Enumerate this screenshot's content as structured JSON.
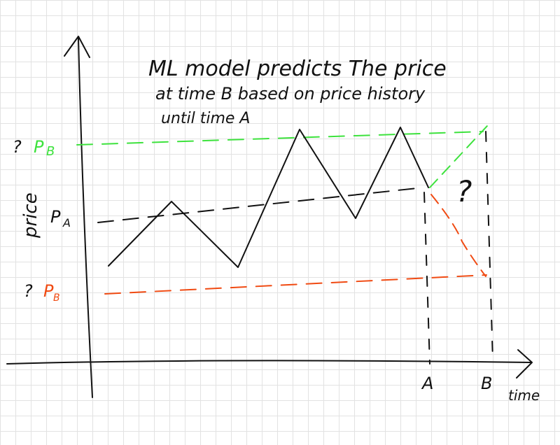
{
  "header": {
    "lines": [
      "ML model predicts The price",
      "at time B based on price history",
      "until time A"
    ]
  },
  "axes": {
    "y_label": "price",
    "x_label": "time"
  },
  "x_marks": [
    "A",
    "B"
  ],
  "price_labels": [
    {
      "question": "?",
      "letter": "P",
      "sub": "B"
    },
    {
      "letter": "P",
      "sub": "A"
    },
    {
      "question": "?",
      "letter": "P",
      "sub": "B"
    }
  ],
  "unknown": "?"
}
